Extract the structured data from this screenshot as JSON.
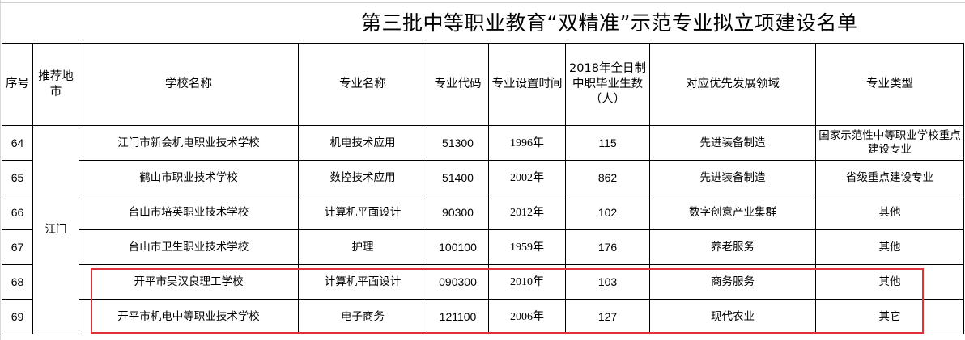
{
  "title": "第三批中等职业教育“双精准”示范专业拟立项建设名单",
  "headers": {
    "seq": "序号",
    "region": "推荐地市",
    "school": "学校名称",
    "major": "专业名称",
    "code": "专业代码",
    "year": "专业设置时间",
    "students": "2018年全日制中职毕业生数（人）",
    "field": "对应优先发展领域",
    "type": "专业类型"
  },
  "region_value": "江门",
  "rows": [
    {
      "seq": "64",
      "school": "江门市新会机电职业技术学校",
      "major": "机电技术应用",
      "code": "51300",
      "year": "1996年",
      "students": "115",
      "field": "先进装备制造",
      "type": "国家示范性中等职业学校重点建设专业"
    },
    {
      "seq": "65",
      "school": "鹤山市职业技术学校",
      "major": "数控技术应用",
      "code": "51400",
      "year": "2002年",
      "students": "862",
      "field": "先进装备制造",
      "type": "省级重点建设专业"
    },
    {
      "seq": "66",
      "school": "台山市培英职业技术学校",
      "major": "计算机平面设计",
      "code": "90300",
      "year": "2012年",
      "students": "102",
      "field": "数字创意产业集群",
      "type": "其他"
    },
    {
      "seq": "67",
      "school": "台山市卫生职业技术学校",
      "major": "护理",
      "code": "100100",
      "year": "1959年",
      "students": "176",
      "field": "养老服务",
      "type": "其他"
    },
    {
      "seq": "68",
      "school": "开平市吴汉良理工学校",
      "major": "计算机平面设计",
      "code": "090300",
      "year": "2010年",
      "students": "103",
      "field": "商务服务",
      "type": "其他"
    },
    {
      "seq": "69",
      "school": "开平市机电中等职业技术学校",
      "major": "电子商务",
      "code": "121100",
      "year": "2006年",
      "students": "127",
      "field": "现代农业",
      "type": "其它"
    }
  ],
  "colors": {
    "highlight_border": "#e0303a",
    "grid": "#000000"
  }
}
